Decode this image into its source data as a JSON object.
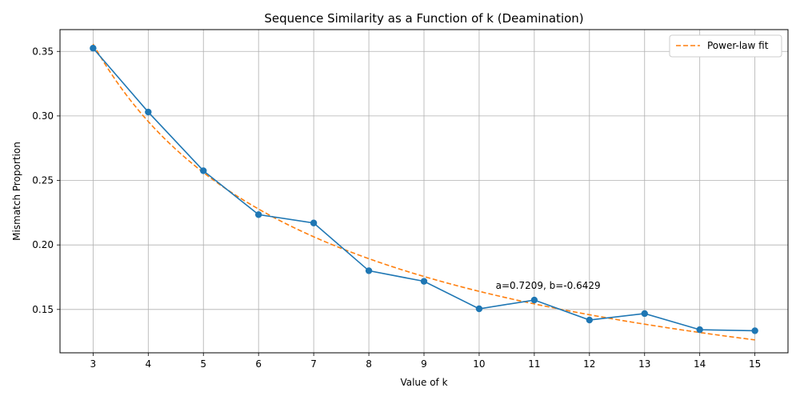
{
  "chart_data": {
    "type": "line",
    "title": "Sequence Similarity as a Function of k (Deamination)",
    "xlabel": "Value of k",
    "ylabel": "Mismatch Proportion",
    "x": [
      3,
      4,
      5,
      6,
      7,
      8,
      9,
      10,
      11,
      12,
      13,
      14,
      15
    ],
    "series": [
      {
        "name": "",
        "color": "#1f77b4",
        "style": "solid-markers",
        "values": [
          0.3525,
          0.303,
          0.2575,
          0.2235,
          0.217,
          0.18,
          0.1718,
          0.1505,
          0.1573,
          0.1418,
          0.1468,
          0.1343,
          0.1335
        ]
      },
      {
        "name": "Power-law fit",
        "color": "#ff7f0e",
        "style": "dashed",
        "a": 0.7209,
        "b": -0.6429
      }
    ],
    "annotation": "a=0.7209, b=-0.6429",
    "annotation_at": [
      10.3,
      0.166
    ],
    "xlim": [
      2.4,
      15.6
    ],
    "ylim": [
      0.1164,
      0.3669
    ],
    "xticks": [
      "3",
      "4",
      "5",
      "6",
      "7",
      "8",
      "9",
      "10",
      "11",
      "12",
      "13",
      "14",
      "15"
    ],
    "yticks": [
      "0.15",
      "0.20",
      "0.25",
      "0.30",
      "0.35"
    ],
    "ytick_values": [
      0.15,
      0.2,
      0.25,
      0.3,
      0.35
    ],
    "grid": true,
    "legend_position": "top-right"
  }
}
